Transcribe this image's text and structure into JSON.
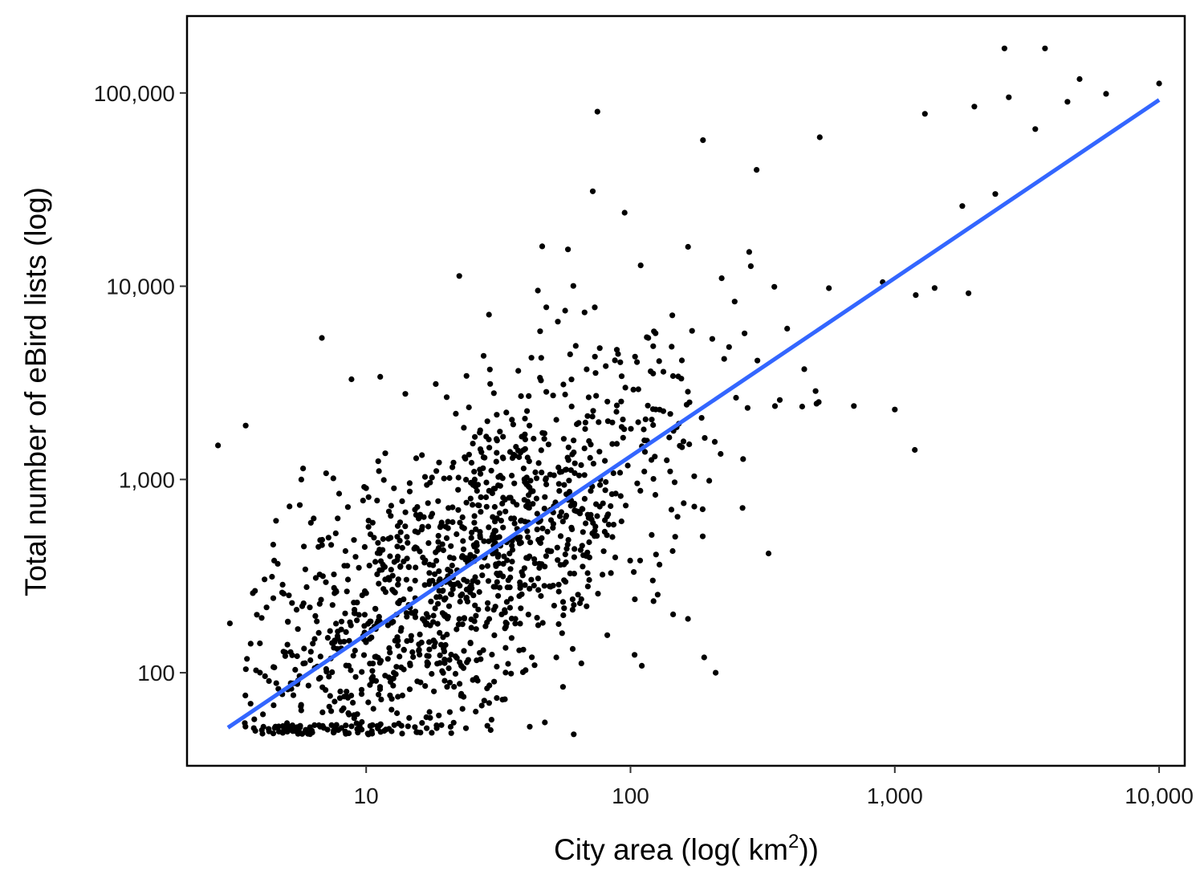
{
  "chart_data": {
    "type": "scatter",
    "xlabel": "City area (log( km",
    "xlabel_sup": "2",
    "xlabel_end": "))",
    "ylabel": "Total number of eBird lists (log)",
    "x_scale": "log10",
    "y_scale": "log10",
    "xlim": [
      2.1,
      12500
    ],
    "ylim": [
      33,
      250000
    ],
    "x_ticks": [
      10,
      100,
      1000,
      10000
    ],
    "x_tick_labels": [
      "10",
      "100",
      "1,000",
      "10,000"
    ],
    "y_ticks": [
      100,
      1000,
      10000,
      100000
    ],
    "y_tick_labels": [
      "100",
      "1,000",
      "10,000",
      "100,000"
    ],
    "grid": false,
    "legend": "none",
    "point_color": "#000000",
    "trend_color": "#3366FF",
    "trend_line": {
      "type": "linear fit on log-log",
      "x": [
        3,
        10000
      ],
      "y": [
        52,
        92000
      ]
    },
    "highlight_points": [
      {
        "x": 2.75,
        "y": 1500
      },
      {
        "x": 3.05,
        "y": 180
      },
      {
        "x": 3.5,
        "y": 1900
      },
      {
        "x": 6.8,
        "y": 5400
      },
      {
        "x": 8.8,
        "y": 3300
      },
      {
        "x": 11.3,
        "y": 3400
      },
      {
        "x": 22.5,
        "y": 11300
      },
      {
        "x": 58,
        "y": 15500
      },
      {
        "x": 72,
        "y": 31000
      },
      {
        "x": 75,
        "y": 80000
      },
      {
        "x": 95,
        "y": 24000
      },
      {
        "x": 188,
        "y": 57000
      },
      {
        "x": 300,
        "y": 40000
      },
      {
        "x": 520,
        "y": 59000
      },
      {
        "x": 900,
        "y": 10500
      },
      {
        "x": 1000,
        "y": 2300
      },
      {
        "x": 1300,
        "y": 78000
      },
      {
        "x": 1900,
        "y": 9200
      },
      {
        "x": 2000,
        "y": 85000
      },
      {
        "x": 2600,
        "y": 170000
      },
      {
        "x": 3700,
        "y": 170000
      },
      {
        "x": 5000,
        "y": 118000
      },
      {
        "x": 6300,
        "y": 99000
      },
      {
        "x": 10000,
        "y": 112000
      },
      {
        "x": 3400,
        "y": 65000
      },
      {
        "x": 4500,
        "y": 90000
      },
      {
        "x": 2700,
        "y": 95000
      },
      {
        "x": 2400,
        "y": 30000
      },
      {
        "x": 1800,
        "y": 26000
      },
      {
        "x": 1200,
        "y": 9000
      },
      {
        "x": 700,
        "y": 2400
      },
      {
        "x": 210,
        "y": 100
      },
      {
        "x": 190,
        "y": 120
      },
      {
        "x": 165,
        "y": 190
      },
      {
        "x": 61,
        "y": 48
      }
    ],
    "cloud": {
      "n_points": 1350,
      "log10_x_mean": 1.36,
      "log10_x_sd": 0.46,
      "log10_x_min": 0.54,
      "log10_x_max": 3.3,
      "trend_offset_sd": 0.42,
      "log10_y_floor": 1.68,
      "log10_y_floor_spread": 0.05
    }
  }
}
